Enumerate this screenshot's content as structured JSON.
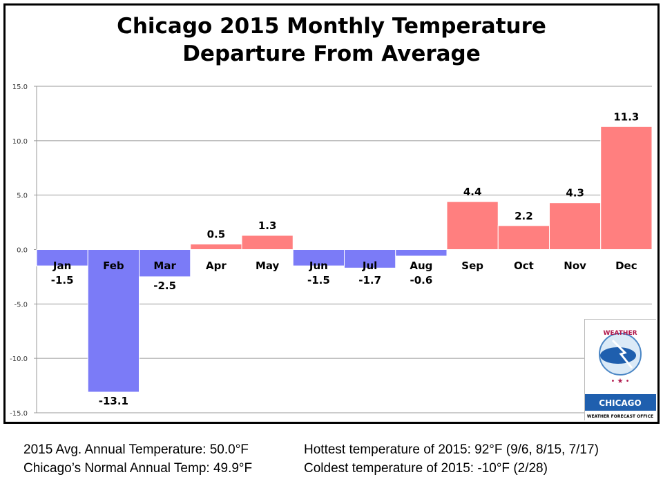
{
  "chart_data": {
    "type": "bar",
    "title": "Chicago 2015 Monthly Temperature Departure From Average",
    "title_lines": [
      "Chicago 2015 Monthly Temperature",
      "Departure From Average"
    ],
    "categories": [
      "Jan",
      "Feb",
      "Mar",
      "Apr",
      "May",
      "Jun",
      "Jul",
      "Aug",
      "Sep",
      "Oct",
      "Nov",
      "Dec"
    ],
    "values": [
      -1.5,
      -13.1,
      -2.5,
      0.5,
      1.3,
      -1.5,
      -1.7,
      -0.6,
      4.4,
      2.2,
      4.3,
      11.3
    ],
    "data_labels": [
      "-1.5",
      "-13.1",
      "-2.5",
      "0.5",
      "1.3",
      "-1.5",
      "-1.7",
      "-0.6",
      "4.4",
      "2.2",
      "4.3",
      "11.3"
    ],
    "ylim": [
      -15,
      15
    ],
    "yticks": [
      "15.0",
      "10.0",
      "5.0",
      "0.0",
      "-5.0",
      "-10.0",
      "-15.0"
    ],
    "ytick_values": [
      15,
      10,
      5,
      0,
      -5,
      -10,
      -15
    ],
    "grid": true,
    "colors": {
      "positive": "#ff7f7f",
      "negative": "#7b7bf7"
    }
  },
  "logo": {
    "arc_text": "NATIONAL WEATHER SERVICE",
    "office": "CHICAGO",
    "subtitle": "WEATHER FORECAST OFFICE"
  },
  "footer": {
    "avg": "2015 Avg. Annual Temperature: 50.0°F",
    "normal": "Chicago’s Normal Annual Temp: 49.9°F",
    "hottest": "Hottest temperature of 2015: 92°F (9/6, 8/15, 7/17)",
    "coldest": "Coldest temperature of 2015: -10°F (2/28)"
  }
}
